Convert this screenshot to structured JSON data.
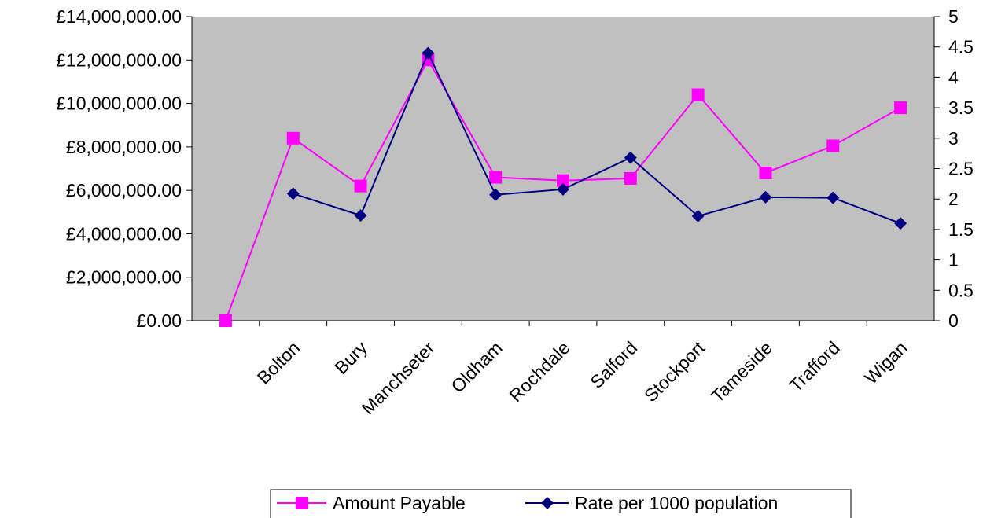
{
  "chart_data": {
    "type": "line",
    "title": "",
    "xlabel": "",
    "ylabel": "",
    "y2label": "",
    "grid": false,
    "legend_placement": "bottom-center",
    "plot_background": "#c0c0c0",
    "categories": [
      "",
      "Bolton",
      "Bury",
      "Manchseter",
      "Oldham",
      "Rochdale",
      "Salford",
      "Stockport",
      "Tameside",
      "Trafford",
      "Wigan"
    ],
    "y_axis_left": {
      "min": 0,
      "max": 14000000,
      "step": 2000000,
      "tick_labels": [
        "£0.00",
        "£2,000,000.00",
        "£4,000,000.00",
        "£6,000,000.00",
        "£8,000,000.00",
        "£10,000,000.00",
        "£12,000,000.00",
        "£14,000,000.00"
      ]
    },
    "y_axis_right": {
      "min": 0,
      "max": 5,
      "step": 0.5,
      "tick_labels": [
        "0",
        "0.5",
        "1",
        "1.5",
        "2",
        "2.5",
        "3",
        "3.5",
        "4",
        "4.5",
        "5"
      ]
    },
    "series": [
      {
        "name": "Amount Payable",
        "axis": "left",
        "color": "#ff00ff",
        "marker": "square",
        "values": [
          0,
          8400000,
          6200000,
          12000000,
          6600000,
          6450000,
          6550000,
          10400000,
          6800000,
          8050000,
          9800000
        ]
      },
      {
        "name": "Rate per 1000 population",
        "axis": "right",
        "color": "#000080",
        "marker": "diamond",
        "values": [
          null,
          2.09,
          1.73,
          4.4,
          2.07,
          2.16,
          2.68,
          1.72,
          2.03,
          2.02,
          1.6
        ]
      }
    ]
  }
}
